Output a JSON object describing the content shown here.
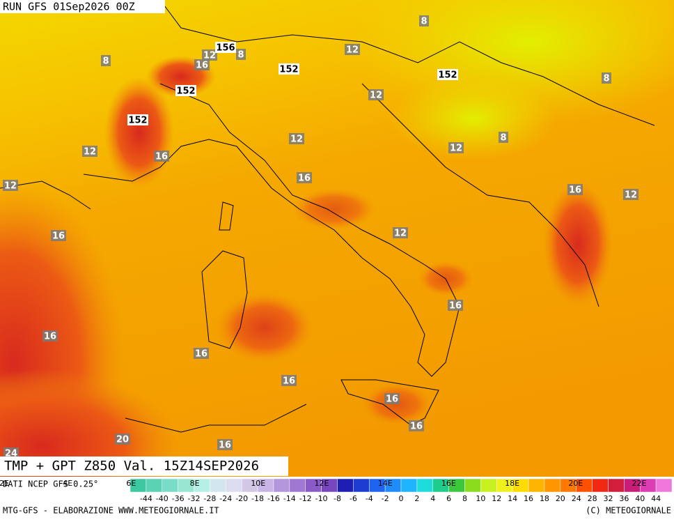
{
  "header": {
    "run": "RUN GFS 01Sep2026 00Z",
    "title": "TMP + GPT Z850 Val. 15Z14SEP2026"
  },
  "map": {
    "temperature_labels": [
      8,
      8,
      8,
      8,
      8,
      12,
      16,
      12,
      12,
      12,
      16,
      12,
      12,
      12,
      16,
      16,
      12,
      16,
      12,
      16,
      16,
      16,
      16,
      16,
      16,
      20,
      16,
      24
    ],
    "height_labels": [
      156,
      152,
      152,
      152,
      152
    ]
  },
  "colorbar": {
    "longitudes": [
      "2E",
      "4E",
      "6E",
      "8E",
      "10E",
      "12E",
      "14E",
      "16E",
      "18E",
      "20E",
      "22E"
    ],
    "labels": [
      -44,
      -40,
      -36,
      -32,
      -28,
      -24,
      -20,
      -18,
      -16,
      -14,
      -12,
      -10,
      -8,
      -6,
      -4,
      -2,
      0,
      2,
      4,
      6,
      8,
      10,
      12,
      14,
      16,
      18,
      20,
      24,
      28,
      32,
      36,
      40,
      44
    ],
    "colors": [
      "#3cc8a0",
      "#5ad2b4",
      "#78dcc8",
      "#96e6d2",
      "#b4f0e6",
      "#d2e6f0",
      "#dcdcf0",
      "#d2c8e6",
      "#c8b4e6",
      "#b496dc",
      "#a078d2",
      "#8c5ac8",
      "#7846be",
      "#1e1eb4",
      "#1e3cd2",
      "#1e64f0",
      "#1e8cff",
      "#1eb4ff",
      "#1edcdc",
      "#1ecc8c",
      "#3cc83c",
      "#8cdc1e",
      "#c8f01e",
      "#f0f01e",
      "#ffdc00",
      "#ffb400",
      "#ff9600",
      "#ff7800",
      "#ff5000",
      "#f02814",
      "#d21e3c",
      "#c81e78",
      "#dc3cb4",
      "#f078dc"
    ]
  },
  "footer": {
    "source": "DATI NCEP GFS 0.25°",
    "credit": "MTG-GFS - ELABORAZIONE WWW.METEOGIORNALE.IT",
    "copyright": "(C) METEOGIORNALE"
  }
}
